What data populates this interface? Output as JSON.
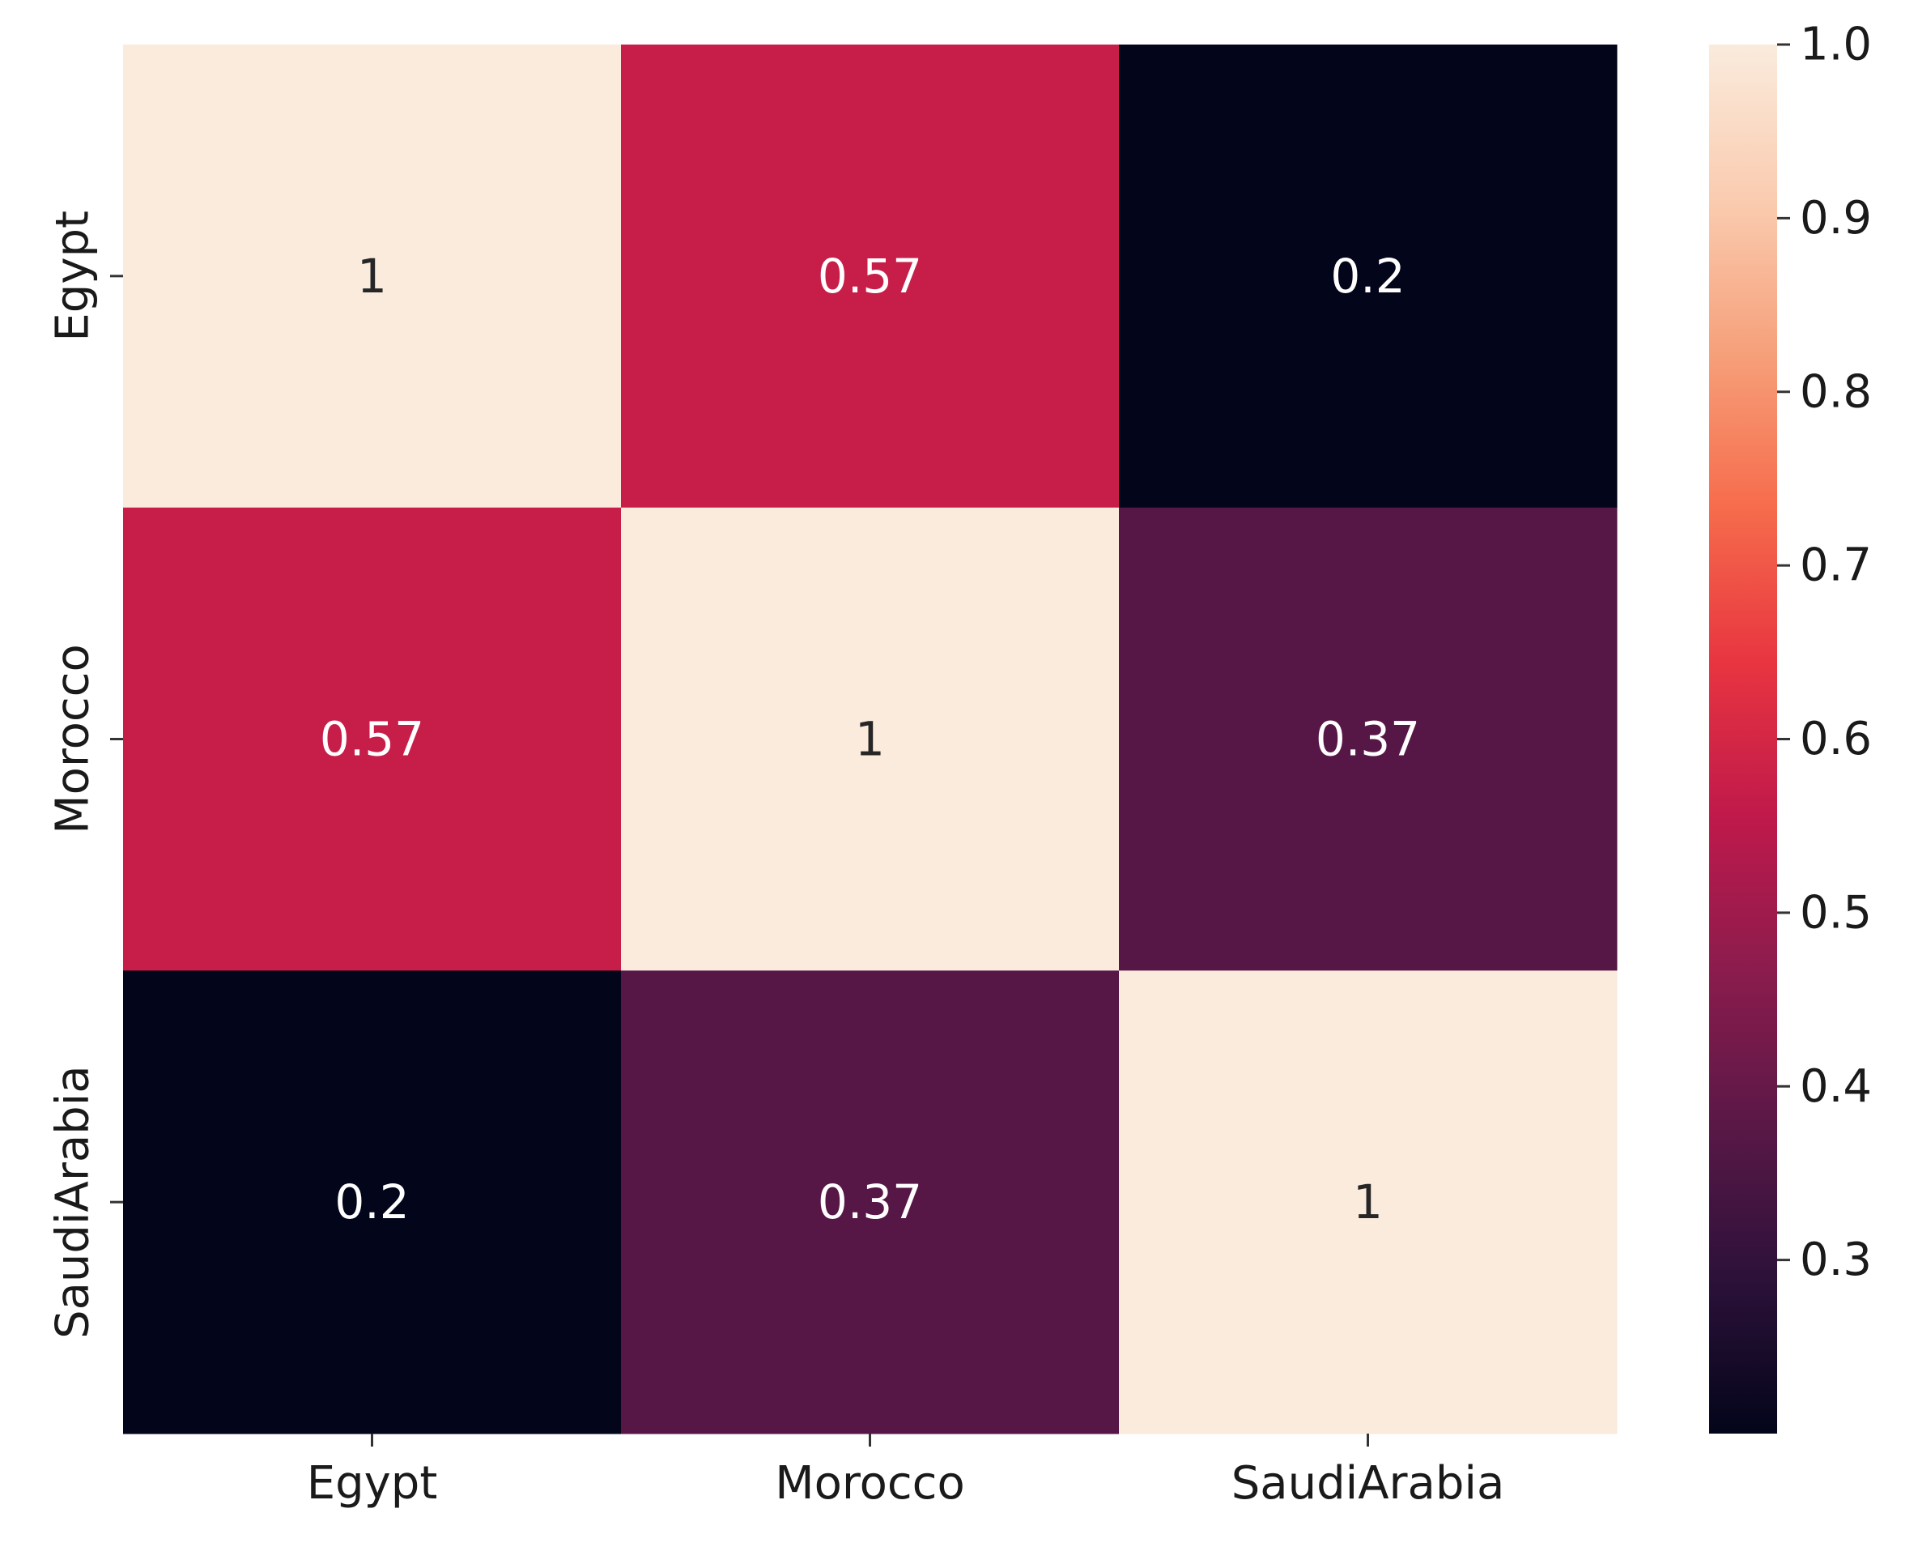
{
  "chart_data": {
    "type": "heatmap",
    "title": "",
    "xlabel": "",
    "ylabel": "",
    "x_categories": [
      "Egypt",
      "Morocco",
      "SaudiArabia"
    ],
    "y_categories": [
      "Egypt",
      "Morocco",
      "SaudiArabia"
    ],
    "values": [
      [
        1,
        0.57,
        0.2
      ],
      [
        0.57,
        1,
        0.37
      ],
      [
        0.2,
        0.37,
        1
      ]
    ],
    "annotations": [
      [
        "1",
        "0.57",
        "0.2"
      ],
      [
        "0.57",
        "1",
        "0.37"
      ],
      [
        "0.2",
        "0.37",
        "1"
      ]
    ],
    "colorbar": {
      "vmin": 0.2,
      "vmax": 1.0,
      "ticks": [
        0.3,
        0.4,
        0.5,
        0.6,
        0.7,
        0.8,
        0.9,
        1.0
      ],
      "tick_labels": [
        "0.3",
        "0.4",
        "0.5",
        "0.6",
        "0.7",
        "0.8",
        "0.9",
        "1.0"
      ],
      "colormap": "rocket",
      "stops": [
        "#03051a",
        "#2c1139",
        "#5a1847",
        "#8b1c4d",
        "#c0194b",
        "#e83540",
        "#f66c4c",
        "#f6a07a",
        "#faccb0",
        "#faebdd"
      ]
    },
    "grid": false
  }
}
